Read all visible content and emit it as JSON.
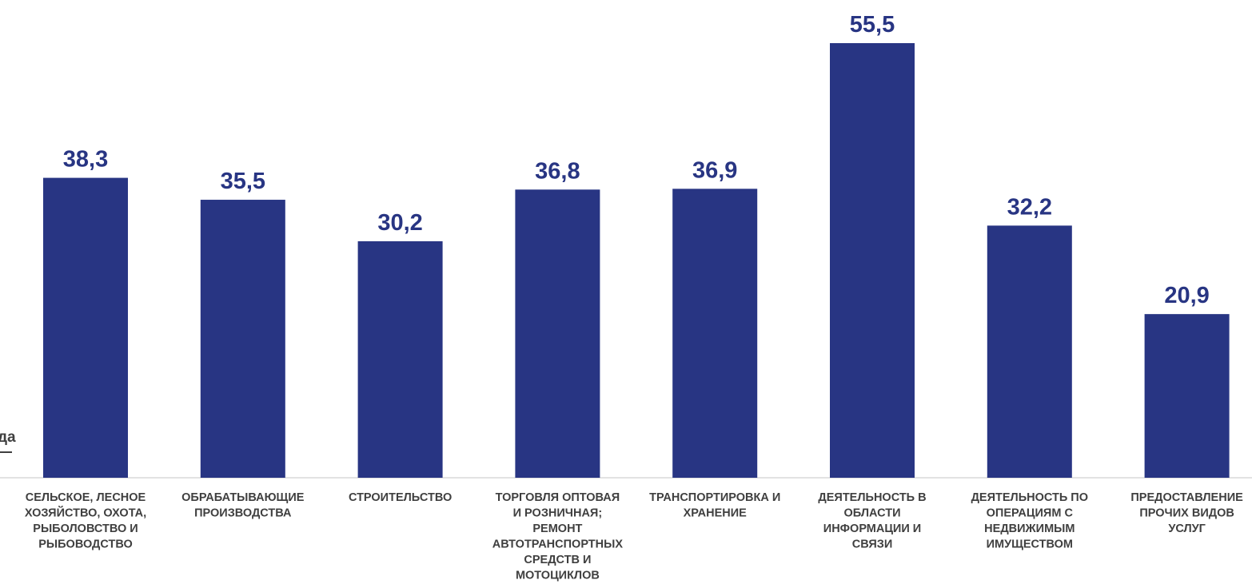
{
  "chart_data": {
    "type": "bar",
    "categories": [
      [
        "СЕЛЬСКОЕ, ЛЕСНОЕ",
        "ХОЗЯЙСТВО, ОХОТА,",
        "РЫБОЛОВСТВО И",
        "РЫБОВОДСТВО"
      ],
      [
        "ОБРАБАТЫВАЮЩИЕ",
        "ПРОИЗВОДСТВА"
      ],
      [
        "СТРОИТЕЛЬСТВО"
      ],
      [
        "ТОРГОВЛЯ ОПТОВАЯ",
        "И РОЗНИЧНАЯ;",
        "РЕМОНТ",
        "АВТОТРАНСПОРТНЫХ",
        "СРЕДСТВ И",
        "МОТОЦИКЛОВ"
      ],
      [
        "ТРАНСПОРТИРОВКА И",
        "ХРАНЕНИЕ"
      ],
      [
        "ДЕЯТЕЛЬНОСТЬ В",
        "ОБЛАСТИ",
        "ИНФОРМАЦИИ И",
        "СВЯЗИ"
      ],
      [
        "ДЕЯТЕЛЬНОСТЬ ПО",
        "ОПЕРАЦИЯМ С",
        "НЕДВИЖИМЫМ",
        "ИМУЩЕСТВОМ"
      ],
      [
        "ПРЕДОСТАВЛЕНИЕ",
        "ПРОЧИХ ВИДОВ",
        "УСЛУГ"
      ]
    ],
    "values": [
      38.3,
      35.5,
      30.2,
      36.8,
      36.9,
      55.5,
      32.2,
      20.9
    ],
    "value_labels": [
      "38,3",
      "35,5",
      "30,2",
      "36,8",
      "36,9",
      "55,5",
      "32,2",
      "20,9"
    ],
    "title": "",
    "xlabel": "",
    "ylabel": "",
    "ylim": [
      0,
      55.5
    ],
    "grid": false,
    "legend": "none",
    "colors": {
      "bar": "#283583",
      "label": "#283583",
      "category": "#3f3f3f",
      "axis": "#d9d9d9"
    }
  },
  "edge_text": "да"
}
